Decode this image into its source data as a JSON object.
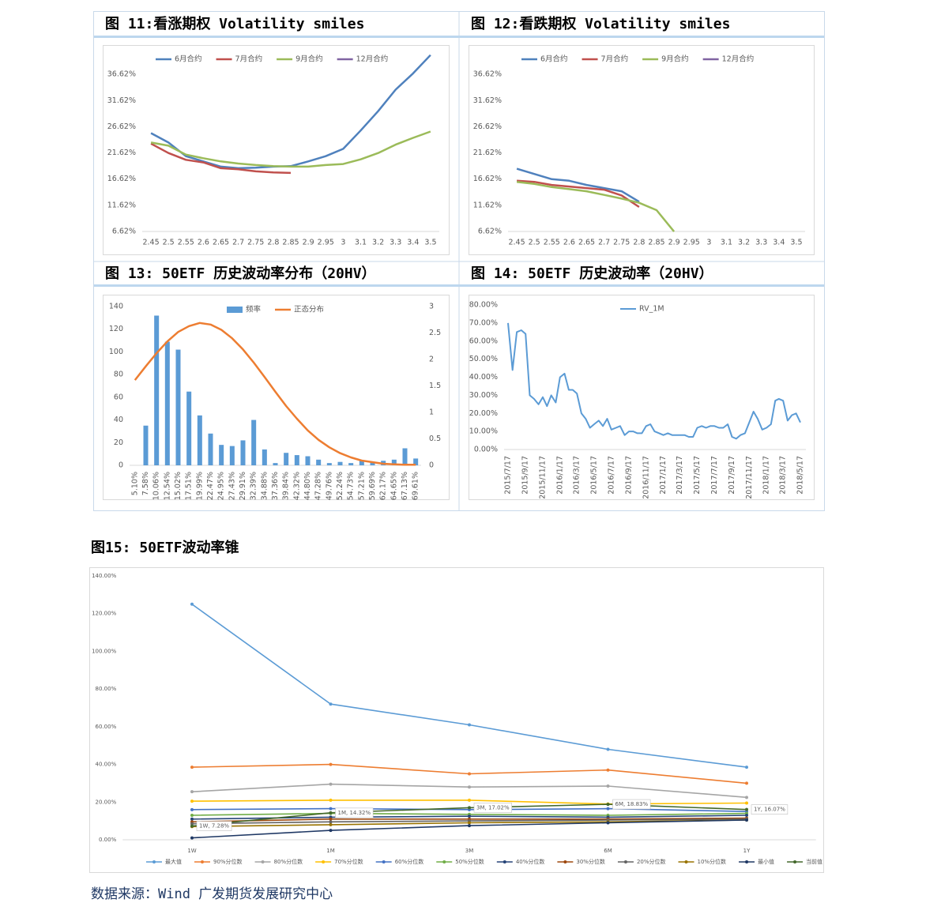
{
  "chart_data": [
    {
      "type": "line",
      "title": "图 11:看涨期权 Volatility smiles",
      "legend": "top",
      "categories": [
        "2.45",
        "2.5",
        "2.55",
        "2.6",
        "2.65",
        "2.7",
        "2.75",
        "2.8",
        "2.85",
        "2.9",
        "2.95",
        "3",
        "3.1",
        "3.2",
        "3.3",
        "3.4",
        "3.5"
      ],
      "ylim": [
        6.62,
        41.62
      ],
      "yticks": [
        {
          "value": 6.62,
          "label": "6.62%"
        },
        {
          "value": 11.62,
          "label": "11.62%"
        },
        {
          "value": 16.62,
          "label": "16.62%"
        },
        {
          "value": 21.62,
          "label": "21.62%"
        },
        {
          "value": 26.62,
          "label": "26.62%"
        },
        {
          "value": 31.62,
          "label": "31.62%"
        },
        {
          "value": 36.62,
          "label": "36.62%"
        }
      ],
      "series": [
        {
          "name": "6月合约",
          "color": "#4f81bd",
          "values": [
            25.4,
            23.6,
            21.0,
            20.0,
            19.0,
            18.7,
            18.8,
            19.0,
            19.1,
            20.0,
            21.0,
            22.4,
            25.9,
            29.6,
            33.7,
            36.8,
            40.3
          ]
        },
        {
          "name": "7月合约",
          "color": "#c0504d",
          "values": [
            23.4,
            21.6,
            20.3,
            19.8,
            18.7,
            18.5,
            18.1,
            17.9,
            17.8,
            null,
            null,
            null,
            null,
            null,
            null,
            null,
            null
          ]
        },
        {
          "name": "9月合约",
          "color": "#9bbb59",
          "values": [
            23.6,
            23.0,
            21.3,
            20.6,
            20.0,
            19.6,
            19.3,
            19.1,
            19.0,
            19.0,
            19.3,
            19.5,
            20.4,
            21.6,
            23.2,
            24.5,
            25.7
          ]
        },
        {
          "name": "12月合约",
          "color": "#8064a2",
          "values": [
            null,
            null,
            null,
            null,
            null,
            null,
            null,
            null,
            null,
            null,
            null,
            null,
            null,
            null,
            null,
            null,
            null
          ]
        }
      ]
    },
    {
      "type": "line",
      "title": "图 12:看跌期权 Volatility smiles",
      "legend": "top",
      "categories": [
        "2.45",
        "2.5",
        "2.55",
        "2.6",
        "2.65",
        "2.7",
        "2.75",
        "2.8",
        "2.85",
        "2.9",
        "2.95",
        "3",
        "3.1",
        "3.2",
        "3.3",
        "3.4",
        "3.5"
      ],
      "ylim": [
        6.62,
        41.62
      ],
      "yticks": [
        {
          "value": 6.62,
          "label": "6.62%"
        },
        {
          "value": 11.62,
          "label": "11.62%"
        },
        {
          "value": 16.62,
          "label": "16.62%"
        },
        {
          "value": 21.62,
          "label": "21.62%"
        },
        {
          "value": 26.62,
          "label": "26.62%"
        },
        {
          "value": 31.62,
          "label": "31.62%"
        },
        {
          "value": 36.62,
          "label": "36.62%"
        }
      ],
      "series": [
        {
          "name": "6月合约",
          "color": "#4f81bd",
          "values": [
            18.6,
            17.6,
            16.6,
            16.3,
            15.5,
            14.9,
            14.3,
            12.3,
            null,
            null,
            null,
            null,
            null,
            null,
            null,
            null,
            null
          ]
        },
        {
          "name": "7月合约",
          "color": "#c0504d",
          "values": [
            16.3,
            16.1,
            15.5,
            15.2,
            14.9,
            14.6,
            13.5,
            11.3,
            null,
            null,
            null,
            null,
            null,
            null,
            null,
            null,
            null
          ]
        },
        {
          "name": "9月合约",
          "color": "#9bbb59",
          "values": [
            16.1,
            15.7,
            15.1,
            14.7,
            14.3,
            13.6,
            12.9,
            12.1,
            10.7,
            6.6,
            null,
            null,
            null,
            null,
            null,
            null,
            null
          ]
        },
        {
          "name": "12月合约",
          "color": "#8064a2",
          "values": [
            null,
            null,
            null,
            null,
            null,
            null,
            null,
            null,
            null,
            null,
            null,
            null,
            null,
            null,
            null,
            null,
            null
          ]
        }
      ]
    },
    {
      "type": "bar",
      "title": "图 13: 50ETF 历史波动率分布（20HV）",
      "legend": "top",
      "categories": [
        "5.10%",
        "7.58%",
        "10.06%",
        "12.54%",
        "15.02%",
        "17.51%",
        "19.99%",
        "22.47%",
        "24.95%",
        "27.43%",
        "29.91%",
        "32.39%",
        "34.88%",
        "37.36%",
        "39.84%",
        "42.32%",
        "44.80%",
        "47.28%",
        "49.76%",
        "52.24%",
        "54.73%",
        "57.21%",
        "59.69%",
        "62.17%",
        "64.65%",
        "67.13%",
        "69.61%"
      ],
      "ylim": [
        0,
        140
      ],
      "yticks": [
        0,
        20,
        40,
        60,
        80,
        100,
        120,
        140
      ],
      "y2lim": [
        0,
        3
      ],
      "y2ticks": [
        0,
        0.5,
        1,
        1.5,
        2,
        2.5,
        3
      ],
      "series": [
        {
          "name": "频率",
          "type": "bar",
          "color": "#5b9bd5",
          "values": [
            0,
            35,
            132,
            109,
            102,
            65,
            44,
            28,
            18,
            17,
            22,
            40,
            14,
            2,
            11,
            9,
            8,
            5,
            2,
            3,
            2,
            4,
            3,
            4,
            5,
            15,
            6
          ]
        },
        {
          "name": "正态分布",
          "type": "line",
          "axis": "y2",
          "color": "#ed7d31",
          "values": [
            1.61,
            1.87,
            2.12,
            2.34,
            2.52,
            2.63,
            2.69,
            2.66,
            2.56,
            2.4,
            2.19,
            1.94,
            1.67,
            1.39,
            1.12,
            0.88,
            0.66,
            0.48,
            0.34,
            0.23,
            0.15,
            0.09,
            0.06,
            0.03,
            0.02,
            0.01,
            0.01
          ]
        }
      ]
    },
    {
      "type": "line",
      "title": "图 14: 50ETF 历史波动率（20HV）",
      "legend": "top",
      "x": [
        "2015/7/17",
        "2015/8/2",
        "2015/8/17",
        "2015/9/2",
        "2015/9/17",
        "2015/10/2",
        "2015/10/17",
        "2015/11/2",
        "2015/11/17",
        "2015/12/2",
        "2015/12/17",
        "2016/1/2",
        "2016/1/17",
        "2016/2/2",
        "2016/2/17",
        "2016/3/2",
        "2016/3/17",
        "2016/4/2",
        "2016/4/17",
        "2016/5/2",
        "2016/5/17",
        "2016/6/2",
        "2016/6/17",
        "2016/7/2",
        "2016/7/17",
        "2016/8/2",
        "2016/8/17",
        "2016/9/2",
        "2016/9/17",
        "2016/10/2",
        "2016/10/17",
        "2016/11/2",
        "2016/11/17",
        "2016/12/2",
        "2016/12/17",
        "2017/1/2",
        "2017/1/17",
        "2017/2/2",
        "2017/2/17",
        "2017/3/2",
        "2017/3/17",
        "2017/4/2",
        "2017/4/17",
        "2017/5/2",
        "2017/5/17",
        "2017/6/2",
        "2017/6/17",
        "2017/7/2",
        "2017/7/17",
        "2017/8/2",
        "2017/8/17",
        "2017/9/2",
        "2017/9/17",
        "2017/10/2",
        "2017/10/17",
        "2017/11/2",
        "2017/11/17",
        "2017/12/2",
        "2017/12/17",
        "2018/1/2",
        "2018/1/17",
        "2018/2/2",
        "2018/2/17",
        "2018/3/2",
        "2018/3/17",
        "2018/4/2",
        "2018/4/17",
        "2018/5/2",
        "2018/5/17"
      ],
      "xticks": [
        "2015/7/17",
        "2015/9/17",
        "2015/11/17",
        "2016/1/17",
        "2016/3/17",
        "2016/5/17",
        "2016/7/17",
        "2016/9/17",
        "2016/11/17",
        "2017/1/17",
        "2017/3/17",
        "2017/5/17",
        "2017/7/17",
        "2017/9/17",
        "2017/11/17",
        "2018/1/17",
        "2018/3/17",
        "2018/5/17"
      ],
      "ylim": [
        0,
        80
      ],
      "yticks": [
        {
          "value": 0,
          "label": "0.00%"
        },
        {
          "value": 10,
          "label": "10.00%"
        },
        {
          "value": 20,
          "label": "20.00%"
        },
        {
          "value": 30,
          "label": "30.00%"
        },
        {
          "value": 40,
          "label": "40.00%"
        },
        {
          "value": 50,
          "label": "50.00%"
        },
        {
          "value": 60,
          "label": "60.00%"
        },
        {
          "value": 70,
          "label": "70.00%"
        },
        {
          "value": 80,
          "label": "80.00%"
        }
      ],
      "series": [
        {
          "name": "RV_1M",
          "color": "#5b9bd5",
          "values": [
            70,
            44,
            65,
            66,
            64,
            30,
            28,
            25,
            29,
            24,
            30,
            26,
            40,
            42,
            33,
            33,
            31,
            20,
            17,
            12,
            14,
            16,
            13,
            17,
            11,
            12,
            13,
            8,
            10,
            10,
            9,
            9,
            13,
            14,
            10,
            9,
            8,
            9,
            8,
            8,
            8,
            8,
            7,
            7,
            12,
            13,
            12,
            13,
            13,
            12,
            12,
            14,
            7,
            6,
            8,
            9,
            15,
            21,
            17,
            11,
            12,
            14,
            27,
            28,
            27,
            16,
            19,
            20,
            15
          ]
        }
      ]
    },
    {
      "type": "line",
      "title": "图15: 50ETF波动率锥",
      "legend": "bottom",
      "markers": true,
      "categories": [
        "1W",
        "1M",
        "3M",
        "6M",
        "1Y"
      ],
      "ylim": [
        0,
        140
      ],
      "yticks": [
        {
          "value": 0,
          "label": "0.00%"
        },
        {
          "value": 20,
          "label": "20.00%"
        },
        {
          "value": 40,
          "label": "40.00%"
        },
        {
          "value": 60,
          "label": "60.00%"
        },
        {
          "value": 80,
          "label": "80.00%"
        },
        {
          "value": 100,
          "label": "100.00%"
        },
        {
          "value": 120,
          "label": "120.00%"
        },
        {
          "value": 140,
          "label": "140.00%"
        }
      ],
      "series": [
        {
          "name": "最大值",
          "color": "#5b9bd5",
          "values": [
            125,
            72,
            61,
            48,
            38.5
          ]
        },
        {
          "name": "90%分位数",
          "color": "#ed7d31",
          "values": [
            38.5,
            40,
            35,
            37,
            30
          ]
        },
        {
          "name": "80%分位数",
          "color": "#a5a5a5",
          "values": [
            25.5,
            29.5,
            28,
            28.5,
            22.5
          ]
        },
        {
          "name": "70%分位数",
          "color": "#ffc000",
          "values": [
            20.5,
            21,
            21,
            19,
            19.5
          ]
        },
        {
          "name": "60%分位数",
          "color": "#4472c4",
          "values": [
            16,
            16.5,
            16,
            16.5,
            15
          ]
        },
        {
          "name": "50%分位数",
          "color": "#70ad47",
          "values": [
            13,
            14,
            13.5,
            13,
            14
          ]
        },
        {
          "name": "40%分位数",
          "color": "#264478",
          "values": [
            11,
            12,
            12.5,
            12,
            13
          ]
        },
        {
          "name": "30%分位数",
          "color": "#9e480e",
          "values": [
            9.5,
            11,
            11,
            11,
            11.5
          ]
        },
        {
          "name": "20%分位数",
          "color": "#636363",
          "values": [
            8.5,
            9.5,
            10,
            10.5,
            11
          ]
        },
        {
          "name": "10%分位数",
          "color": "#997300",
          "values": [
            7,
            8,
            9,
            9.5,
            10.5
          ]
        },
        {
          "name": "最小值",
          "color": "#1f3864",
          "values": [
            1,
            5,
            7.5,
            9,
            10.5
          ]
        },
        {
          "name": "当前值",
          "color": "#43682b",
          "values": [
            7.28,
            14.32,
            17.02,
            18.83,
            16.07
          ],
          "value_labels": [
            "1W, 7.28%",
            "1M, 14.32%",
            "3M, 17.02%",
            "6M, 18.83%",
            "1Y, 16.07%"
          ]
        }
      ]
    }
  ],
  "source": "数据来源：Wind 广发期货发展研究中心"
}
